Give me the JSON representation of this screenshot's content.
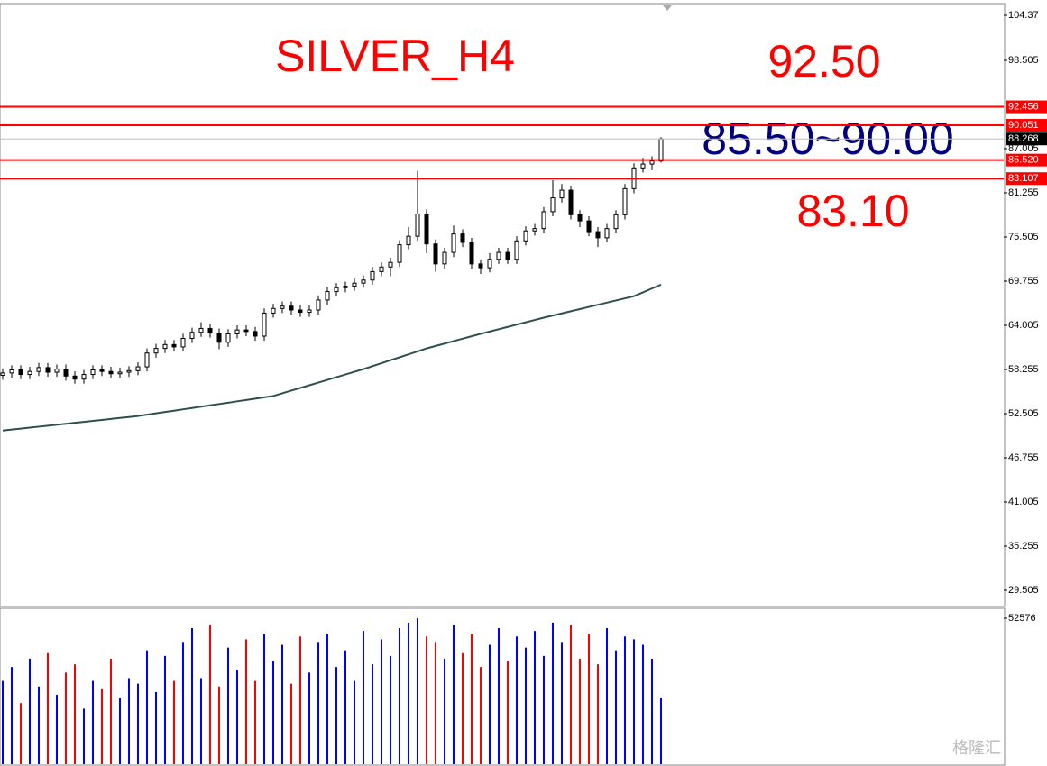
{
  "chart_data": {
    "type": "candlestick",
    "annotations": [
      {
        "text": "SILVER_H4",
        "color": "#ff0000"
      },
      {
        "text": "92.50",
        "color": "#ff0000"
      },
      {
        "text": "85.50~90.00",
        "color": "#000080"
      },
      {
        "text": "83.10",
        "color": "#ff0000"
      }
    ],
    "ylim": [
      27.51,
      105.78
    ],
    "yticks": [
      104.37,
      98.505,
      87.005,
      81.255,
      75.505,
      69.755,
      64.005,
      58.255,
      52.505,
      46.755,
      41.005,
      35.255,
      29.505
    ],
    "levels": [
      92.456,
      90.051,
      {
        "value": 85.52,
        "label": "85.520"
      },
      83.107
    ],
    "level_color": "#ff0000",
    "candles": {
      "open": [
        57.5,
        57.8,
        58.2,
        57.6,
        58.0,
        58.5,
        57.9,
        58.3,
        57.4,
        57.0,
        57.6,
        58.2,
        58.0,
        57.7,
        57.9,
        58.1,
        58.6,
        60.4,
        61.0,
        61.5,
        61.2,
        62.3,
        63.1,
        63.6,
        63.0,
        61.8,
        62.9,
        63.4,
        63.2,
        62.6,
        65.6,
        66.2,
        66.5,
        66.0,
        65.7,
        66.0,
        67.3,
        68.4,
        68.9,
        69.1,
        69.5,
        69.9,
        71.0,
        71.6,
        72.2,
        74.5,
        75.6,
        78.5,
        74.6,
        72.0,
        73.5,
        75.9,
        74.8,
        72.0,
        71.5,
        72.6,
        73.5,
        72.6,
        75.0,
        76.3,
        76.6,
        78.8,
        80.6,
        81.6,
        78.4,
        77.6,
        76.2,
        75.4,
        76.6,
        78.4,
        81.8,
        84.5,
        85.0,
        85.4
      ],
      "high": [
        58.4,
        58.8,
        58.8,
        58.6,
        59.1,
        59.1,
        58.9,
        58.9,
        58.0,
        58.2,
        58.8,
        58.8,
        58.6,
        58.5,
        58.7,
        59.2,
        61.0,
        61.6,
        62.1,
        62.1,
        62.9,
        63.7,
        64.4,
        64.2,
        63.6,
        63.5,
        64.0,
        64.0,
        63.8,
        66.2,
        66.8,
        67.1,
        67.1,
        66.6,
        66.6,
        67.9,
        69.0,
        69.5,
        69.7,
        70.1,
        70.5,
        71.6,
        72.2,
        72.8,
        75.1,
        76.8,
        84.1,
        79.1,
        75.2,
        74.1,
        77.0,
        76.5,
        75.4,
        72.6,
        73.4,
        74.1,
        74.1,
        75.6,
        76.9,
        77.2,
        79.4,
        82.9,
        82.4,
        82.2,
        79.0,
        78.2,
        76.8,
        77.2,
        79.0,
        82.4,
        85.1,
        85.8,
        86.0,
        88.5
      ],
      "low": [
        56.9,
        57.2,
        57.0,
        57.0,
        57.4,
        57.3,
        57.3,
        56.8,
        56.4,
        56.4,
        57.0,
        57.4,
        57.1,
        57.1,
        57.3,
        57.5,
        58.0,
        59.8,
        60.4,
        60.6,
        60.6,
        61.7,
        62.5,
        62.4,
        60.9,
        61.2,
        62.3,
        62.6,
        62.0,
        62.0,
        65.0,
        65.6,
        65.4,
        65.1,
        65.1,
        65.4,
        66.7,
        67.8,
        68.3,
        68.5,
        68.9,
        69.3,
        70.4,
        70.4,
        71.6,
        73.9,
        75.0,
        73.4,
        71.0,
        71.4,
        72.9,
        74.2,
        71.4,
        70.7,
        70.9,
        72.0,
        72.0,
        72.0,
        74.4,
        75.7,
        76.0,
        78.2,
        80.0,
        77.8,
        76.8,
        75.6,
        74.2,
        74.8,
        76.0,
        77.8,
        81.2,
        83.9,
        84.2,
        85.2
      ],
      "close": [
        57.8,
        58.2,
        57.6,
        58.0,
        58.5,
        57.9,
        58.3,
        57.4,
        57.0,
        57.6,
        58.2,
        58.0,
        57.7,
        57.9,
        58.1,
        58.6,
        60.4,
        61.0,
        61.5,
        61.2,
        62.3,
        63.1,
        63.6,
        63.0,
        61.8,
        62.9,
        63.4,
        63.2,
        62.6,
        65.6,
        66.2,
        66.5,
        66.0,
        65.7,
        66.0,
        67.3,
        68.4,
        68.9,
        69.1,
        69.5,
        69.9,
        71.0,
        71.6,
        72.2,
        74.5,
        75.6,
        78.5,
        74.6,
        72.0,
        73.5,
        75.9,
        74.8,
        72.0,
        71.5,
        72.6,
        73.5,
        72.6,
        75.0,
        76.3,
        76.6,
        78.8,
        80.6,
        81.6,
        78.4,
        77.6,
        76.2,
        75.4,
        76.6,
        78.4,
        81.8,
        84.5,
        85.0,
        85.4,
        88.268
      ]
    },
    "moving_average": {
      "color": "#2f4f4f",
      "values": [
        50.3,
        50.43,
        50.55,
        50.68,
        50.81,
        50.93,
        51.06,
        51.19,
        51.31,
        51.44,
        51.57,
        51.69,
        51.82,
        51.95,
        52.07,
        52.2,
        52.37,
        52.55,
        52.72,
        52.89,
        53.07,
        53.24,
        53.41,
        53.59,
        53.76,
        53.93,
        54.11,
        54.28,
        54.45,
        54.63,
        54.8,
        55.15,
        55.5,
        55.85,
        56.2,
        56.55,
        56.9,
        57.25,
        57.6,
        57.95,
        58.3,
        58.69,
        59.07,
        59.46,
        59.84,
        60.23,
        60.61,
        61.0,
        61.32,
        61.63,
        61.95,
        62.27,
        62.58,
        62.9,
        63.2,
        63.5,
        63.8,
        64.1,
        64.4,
        64.7,
        65.0,
        65.28,
        65.56,
        65.84,
        66.12,
        66.4,
        66.68,
        66.96,
        67.24,
        67.52,
        67.8,
        68.3,
        68.8,
        69.3
      ]
    },
    "volume": {
      "up_color": "#0000ff",
      "down_color": "#ff0000",
      "ylim": [
        0,
        55821
      ],
      "yticks": [
        52576
      ],
      "values": [
        30000,
        35000,
        22000,
        38000,
        28000,
        40000,
        25000,
        33000,
        36000,
        20000,
        30000,
        27000,
        38000,
        24000,
        31000,
        29000,
        41000,
        26000,
        39000,
        30000,
        44000,
        49000,
        31000,
        50000,
        28000,
        42000,
        34000,
        45000,
        30000,
        47000,
        37000,
        43000,
        29000,
        46000,
        33000,
        44000,
        47000,
        35000,
        41000,
        30000,
        48000,
        36000,
        45000,
        39000,
        49000,
        51000,
        52576,
        46000,
        44000,
        38000,
        50000,
        40000,
        47000,
        35000,
        43000,
        49000,
        37000,
        46000,
        42000,
        48000,
        39000,
        51000,
        44000,
        50000,
        38000,
        47000,
        36000,
        49000,
        41000,
        46000,
        45000,
        43000,
        38000,
        24000
      ]
    },
    "watermark": "格隆汇"
  }
}
